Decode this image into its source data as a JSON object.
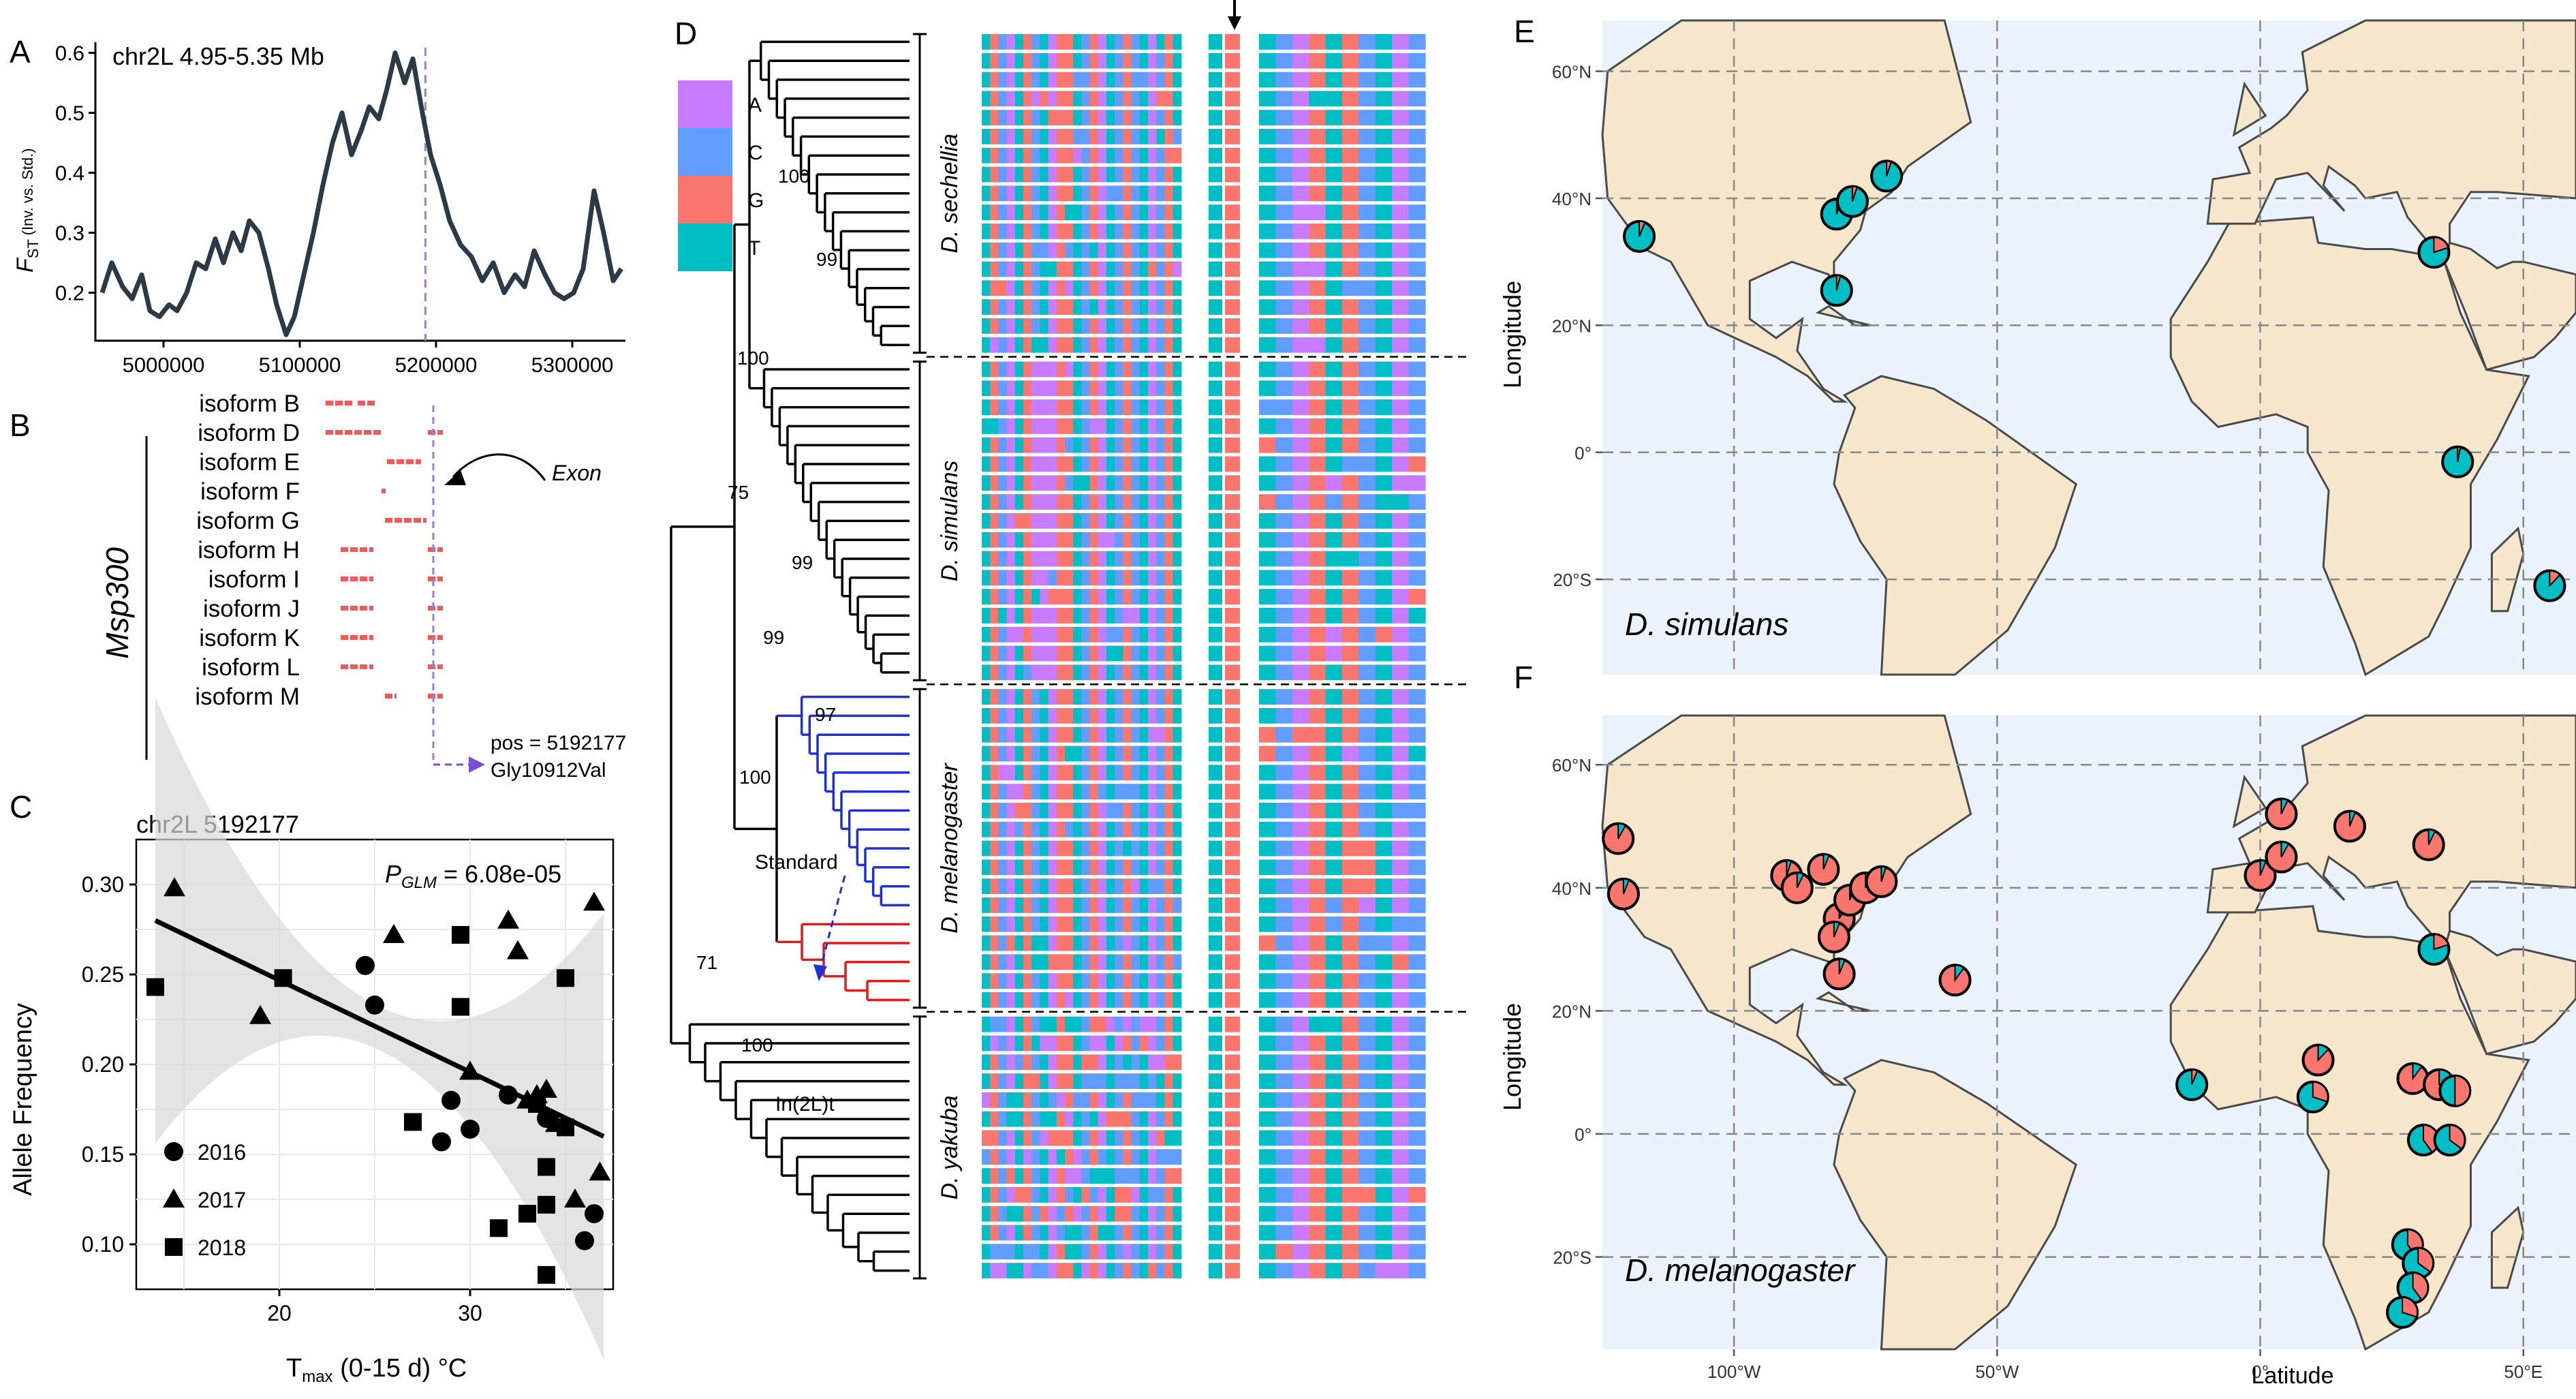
{
  "panels": {
    "A": "A",
    "B": "B",
    "C": "C",
    "D": "D",
    "E": "E",
    "F": "F"
  },
  "colors": {
    "fst_line": "#2b3a47",
    "purple": "#7a4fd6",
    "exon": "#ef5b5b",
    "A": "#c77cff",
    "C": "#619cff",
    "G": "#f8766d",
    "T": "#00bfc4",
    "ocean": "#eaf3fc",
    "land": "#f5e6cc",
    "border": "#4a4a4a",
    "standard": "#1f2fd6",
    "inversion": "#e01b1b",
    "band": "#d9d9d9"
  },
  "panelA": {
    "title": "chr2L 4.95-5.35 Mb",
    "ylabel_main": "F",
    "ylabel_sub": "ST",
    "ylabel_paren": " (Inv. vs. Std.)",
    "chart_data": {
      "type": "line",
      "xlim": [
        4950000,
        5340000
      ],
      "ylim": [
        0.12,
        0.62
      ],
      "x_ticks": [
        5000000,
        5100000,
        5200000,
        5300000
      ],
      "x_tick_labels": [
        "5000000",
        "5100000",
        "5200000",
        "5300000"
      ],
      "y_ticks": [
        0.2,
        0.3,
        0.4,
        0.5,
        0.6
      ],
      "y_tick_labels": [
        "0.2",
        "0.3",
        "0.4",
        "0.5",
        "0.6"
      ],
      "marker_x": 5192177,
      "x": [
        4955000,
        4962000,
        4970000,
        4977000,
        4984000,
        4990000,
        4997000,
        5004000,
        5010000,
        5017000,
        5024000,
        5031000,
        5038000,
        5044000,
        5051000,
        5057000,
        5063000,
        5070000,
        5077000,
        5083000,
        5090000,
        5096000,
        5102000,
        5110000,
        5117000,
        5124000,
        5131000,
        5138000,
        5145000,
        5151000,
        5158000,
        5164000,
        5170000,
        5177000,
        5183000,
        5190000,
        5196000,
        5203000,
        5210000,
        5218000,
        5226000,
        5234000,
        5242000,
        5250000,
        5258000,
        5265000,
        5272000,
        5280000,
        5287000,
        5294000,
        5301000,
        5308000,
        5316000,
        5323000,
        5330000,
        5336000
      ],
      "y": [
        0.2,
        0.25,
        0.21,
        0.19,
        0.23,
        0.17,
        0.16,
        0.18,
        0.17,
        0.2,
        0.25,
        0.24,
        0.29,
        0.25,
        0.3,
        0.27,
        0.32,
        0.3,
        0.24,
        0.18,
        0.13,
        0.16,
        0.22,
        0.3,
        0.38,
        0.45,
        0.5,
        0.43,
        0.47,
        0.51,
        0.49,
        0.54,
        0.6,
        0.55,
        0.59,
        0.5,
        0.43,
        0.38,
        0.32,
        0.28,
        0.26,
        0.22,
        0.25,
        0.2,
        0.23,
        0.21,
        0.27,
        0.23,
        0.2,
        0.19,
        0.2,
        0.24,
        0.37,
        0.3,
        0.22,
        0.24
      ]
    }
  },
  "panelB": {
    "gene": "Msp300",
    "isoforms": [
      "isoform B",
      "isoform D",
      "isoform E",
      "isoform F",
      "isoform G",
      "isoform H",
      "isoform I",
      "isoform J",
      "isoform K",
      "isoform L",
      "isoform M"
    ],
    "exon_label": "Exon",
    "pos_label": "pos = 5192177",
    "aa_label": "Gly10912Val"
  },
  "panelC": {
    "title": "chr2L 5192177",
    "pglm_prefix": "P",
    "pglm_sub": "GLM",
    "pglm_value": " = 6.08e-05",
    "ylabel": "Allele Frequency",
    "xlabel_main": "T",
    "xlabel_sub": "max",
    "xlabel_rest": " (0-15 d) °C",
    "legend": [
      {
        "label": "2016",
        "shape": "circle"
      },
      {
        "label": "2017",
        "shape": "triangle"
      },
      {
        "label": "2018",
        "shape": "square"
      }
    ],
    "chart_data": {
      "type": "scatter",
      "xlim": [
        12.5,
        37.5
      ],
      "ylim": [
        0.075,
        0.325
      ],
      "x_ticks": [
        20,
        30
      ],
      "x_tick_labels": [
        "20",
        "30"
      ],
      "y_ticks": [
        0.1,
        0.15,
        0.2,
        0.25,
        0.3
      ],
      "y_tick_labels": [
        "0.10",
        "0.15",
        "0.20",
        "0.25",
        "0.30"
      ],
      "fit": {
        "x": [
          13.5,
          37
        ],
        "y": [
          0.28,
          0.16
        ]
      },
      "series": [
        {
          "name": "2016",
          "shape": "circle",
          "points": [
            [
              24.5,
              0.255
            ],
            [
              25,
              0.233
            ],
            [
              28.5,
              0.157
            ],
            [
              29,
              0.18
            ],
            [
              30,
              0.164
            ],
            [
              32,
              0.183
            ],
            [
              34,
              0.17
            ],
            [
              36,
              0.102
            ],
            [
              36.5,
              0.117
            ]
          ]
        },
        {
          "name": "2017",
          "shape": "triangle",
          "points": [
            [
              14.5,
              0.298
            ],
            [
              19,
              0.227
            ],
            [
              26,
              0.272
            ],
            [
              30,
              0.196
            ],
            [
              32,
              0.28
            ],
            [
              32.5,
              0.263
            ],
            [
              33,
              0.18
            ],
            [
              33.5,
              0.183
            ],
            [
              34,
              0.186
            ],
            [
              34.5,
              0.167
            ],
            [
              36.5,
              0.29
            ],
            [
              36.8,
              0.14
            ],
            [
              35.5,
              0.125
            ]
          ]
        },
        {
          "name": "2018",
          "shape": "square",
          "points": [
            [
              13.5,
              0.243
            ],
            [
              20.2,
              0.248
            ],
            [
              27,
              0.168
            ],
            [
              29.5,
              0.272
            ],
            [
              29.5,
              0.232
            ],
            [
              31.5,
              0.109
            ],
            [
              33,
              0.117
            ],
            [
              33.5,
              0.178
            ],
            [
              34,
              0.143
            ],
            [
              34,
              0.122
            ],
            [
              35,
              0.165
            ],
            [
              35,
              0.248
            ],
            [
              34,
              0.083
            ]
          ]
        }
      ]
    }
  },
  "panelD": {
    "legend": [
      {
        "base": "A"
      },
      {
        "base": "C"
      },
      {
        "base": "G"
      },
      {
        "base": "T"
      }
    ],
    "species": [
      "D. sechellia",
      "D. simulans",
      "D. melanogaster",
      "D. yakuba"
    ],
    "bootstraps": [
      "100",
      "99",
      "100",
      "75",
      "99",
      "99",
      "97",
      "100",
      "71",
      "100"
    ],
    "standard_label": "Standard",
    "inversion_label": "In(2L)t"
  },
  "panelE": {
    "species": "D. simulans",
    "ylabel": "Longitude",
    "lat_labels": [
      "60°N",
      "40°N",
      "20°N",
      "0°",
      "20°S"
    ]
  },
  "panelF": {
    "species": "D. melanogaster",
    "ylabel": "Longitude",
    "xlabel": "Latitude",
    "lat_labels": [
      "60°N",
      "40°N",
      "20°N",
      "0°",
      "20°S"
    ],
    "lon_labels": [
      "100°W",
      "50°W",
      "0°",
      "50°E"
    ]
  }
}
